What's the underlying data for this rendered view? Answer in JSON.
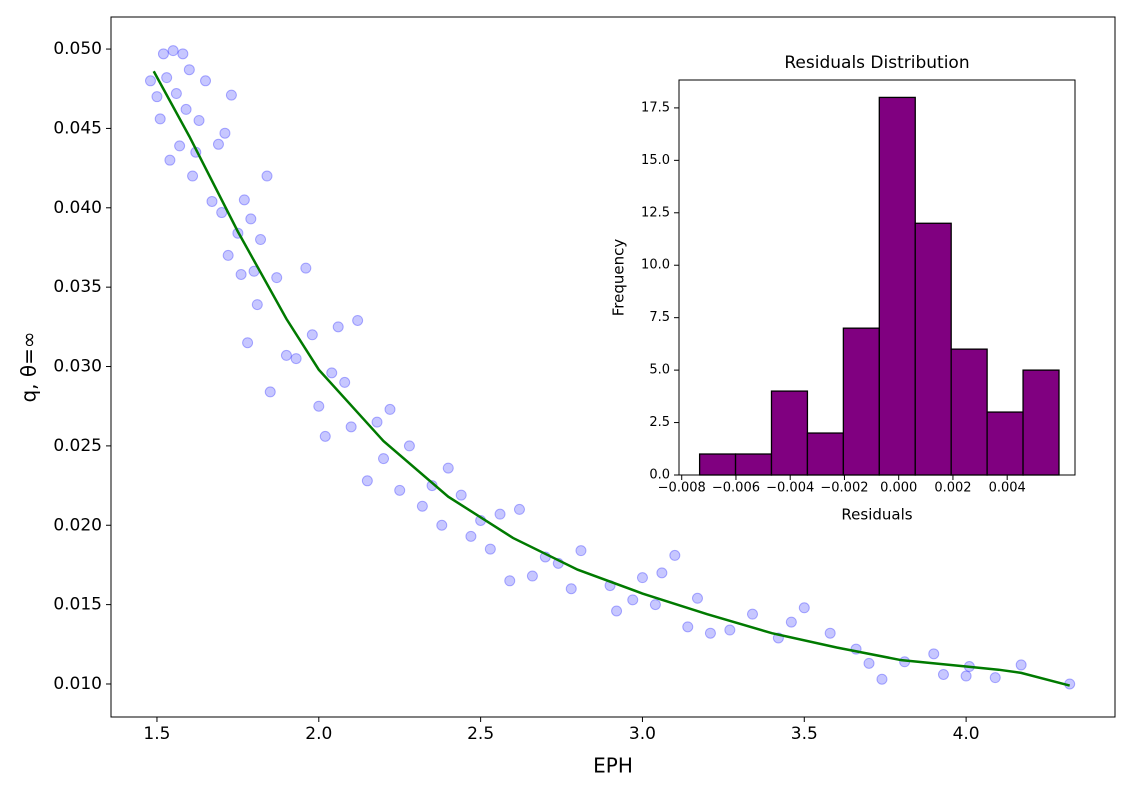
{
  "chart_data": [
    {
      "type": "scatter",
      "xlabel": "EPH",
      "ylabel": "q, θ=∞",
      "xlim": [
        1.358,
        4.46
      ],
      "ylim": [
        0.00792,
        0.05202
      ],
      "xticks": [
        1.5,
        {
          "value": 2.0,
          "label": "2.0"
        },
        2.5,
        {
          "value": 3.0,
          "label": "3.0"
        },
        3.5,
        {
          "value": 4.0,
          "label": "4.0"
        }
      ],
      "yticks": [
        {
          "value": 0.01,
          "label": "0.010"
        },
        {
          "value": 0.015,
          "label": "0.015"
        },
        {
          "value": 0.02,
          "label": "0.020"
        },
        {
          "value": 0.025,
          "label": "0.025"
        },
        {
          "value": 0.03,
          "label": "0.030"
        },
        {
          "value": 0.035,
          "label": "0.035"
        },
        {
          "value": 0.04,
          "label": "0.040"
        },
        {
          "value": 0.045,
          "label": "0.045"
        },
        {
          "value": 0.05,
          "label": "0.050"
        }
      ],
      "series": [
        {
          "kind": "scatter",
          "color": "#0000ff",
          "x": [
            1.48,
            1.5,
            1.51,
            1.52,
            1.53,
            1.54,
            1.55,
            1.56,
            1.57,
            1.58,
            1.59,
            1.6,
            1.61,
            1.62,
            1.63,
            1.65,
            1.67,
            1.69,
            1.7,
            1.71,
            1.72,
            1.73,
            1.75,
            1.76,
            1.77,
            1.78,
            1.79,
            1.8,
            1.81,
            1.82,
            1.84,
            1.85,
            1.87,
            1.9,
            1.93,
            1.96,
            1.98,
            2.0,
            2.02,
            2.04,
            2.06,
            2.08,
            2.1,
            2.12,
            2.15,
            2.18,
            2.2,
            2.22,
            2.25,
            2.28,
            2.32,
            2.35,
            2.38,
            2.4,
            2.44,
            2.47,
            2.5,
            2.53,
            2.56,
            2.59,
            2.62,
            2.66,
            2.7,
            2.74,
            2.78,
            2.81,
            2.9,
            2.92,
            2.97,
            3.0,
            3.04,
            3.06,
            3.1,
            3.14,
            3.17,
            3.21,
            3.27,
            3.34,
            3.42,
            3.46,
            3.5,
            3.58,
            3.66,
            3.7,
            3.74,
            3.81,
            3.9,
            3.93,
            4.0,
            4.01,
            4.09,
            4.17,
            4.32
          ],
          "values": [
            0.048,
            0.047,
            0.0456,
            0.0497,
            0.0482,
            0.043,
            0.0499,
            0.0472,
            0.0439,
            0.0497,
            0.0462,
            0.0487,
            0.042,
            0.0435,
            0.0455,
            0.048,
            0.0404,
            0.044,
            0.0397,
            0.0447,
            0.037,
            0.0471,
            0.0384,
            0.0358,
            0.0405,
            0.0315,
            0.0393,
            0.036,
            0.0339,
            0.038,
            0.042,
            0.0284,
            0.0356,
            0.0307,
            0.0305,
            0.0362,
            0.032,
            0.0275,
            0.0256,
            0.0296,
            0.0325,
            0.029,
            0.0262,
            0.0329,
            0.0228,
            0.0265,
            0.0242,
            0.0273,
            0.0222,
            0.025,
            0.0212,
            0.0225,
            0.02,
            0.0236,
            0.0219,
            0.0193,
            0.0203,
            0.0185,
            0.0207,
            0.0165,
            0.021,
            0.0168,
            0.018,
            0.0176,
            0.016,
            0.0184,
            0.0162,
            0.0146,
            0.0153,
            0.0167,
            0.015,
            0.017,
            0.0181,
            0.0136,
            0.0154,
            0.0132,
            0.0134,
            0.0144,
            0.0129,
            0.0139,
            0.0148,
            0.0132,
            0.0122,
            0.0113,
            0.0103,
            0.0114,
            0.0119,
            0.0106,
            0.0105,
            0.0111,
            0.0104,
            0.0112,
            0.01
          ]
        },
        {
          "kind": "line",
          "color": "#007a00",
          "x": [
            1.49,
            1.6,
            1.75,
            1.9,
            2.0,
            2.2,
            2.4,
            2.6,
            2.8,
            3.0,
            3.2,
            3.4,
            3.6,
            3.8,
            4.0,
            4.1,
            4.17,
            4.32
          ],
          "values": [
            0.0486,
            0.0445,
            0.0385,
            0.033,
            0.0298,
            0.0253,
            0.0218,
            0.0192,
            0.0172,
            0.0157,
            0.0144,
            0.0132,
            0.0123,
            0.0115,
            0.0111,
            0.0109,
            0.0107,
            0.0099
          ]
        }
      ]
    },
    {
      "type": "histogram",
      "title": "Residuals Distribution",
      "xlabel": "Residuals",
      "ylabel": "Frequency",
      "color": "#800080",
      "edgecolor": "#000000",
      "bins": [
        -0.00734,
        -0.006015,
        -0.00469,
        -0.003365,
        -0.00204,
        -0.000715,
        0.00061,
        0.001935,
        0.00326,
        0.004585,
        0.00591
      ],
      "values": [
        1,
        1,
        4,
        2,
        7,
        18,
        12,
        6,
        3,
        5
      ],
      "xlim": [
        -0.0081,
        0.0065
      ],
      "ylim": [
        0,
        18.83
      ],
      "xticks": [
        {
          "value": -0.008,
          "label": "−0.008"
        },
        {
          "value": -0.006,
          "label": "−0.006"
        },
        {
          "value": -0.004,
          "label": "−0.004"
        },
        {
          "value": -0.002,
          "label": "−0.002"
        },
        {
          "value": 0,
          "label": "0.000"
        },
        {
          "value": 0.002,
          "label": "0.002"
        },
        {
          "value": 0.004,
          "label": "0.004"
        }
      ],
      "yticks": [
        {
          "value": 0,
          "label": "0.0"
        },
        {
          "value": 2.5,
          "label": "2.5"
        },
        {
          "value": 5,
          "label": "5.0"
        },
        {
          "value": 7.5,
          "label": "7.5"
        },
        {
          "value": 10,
          "label": "10.0"
        },
        {
          "value": 12.5,
          "label": "12.5"
        },
        {
          "value": 15,
          "label": "15.0"
        },
        {
          "value": 17.5,
          "label": "17.5"
        }
      ]
    }
  ]
}
